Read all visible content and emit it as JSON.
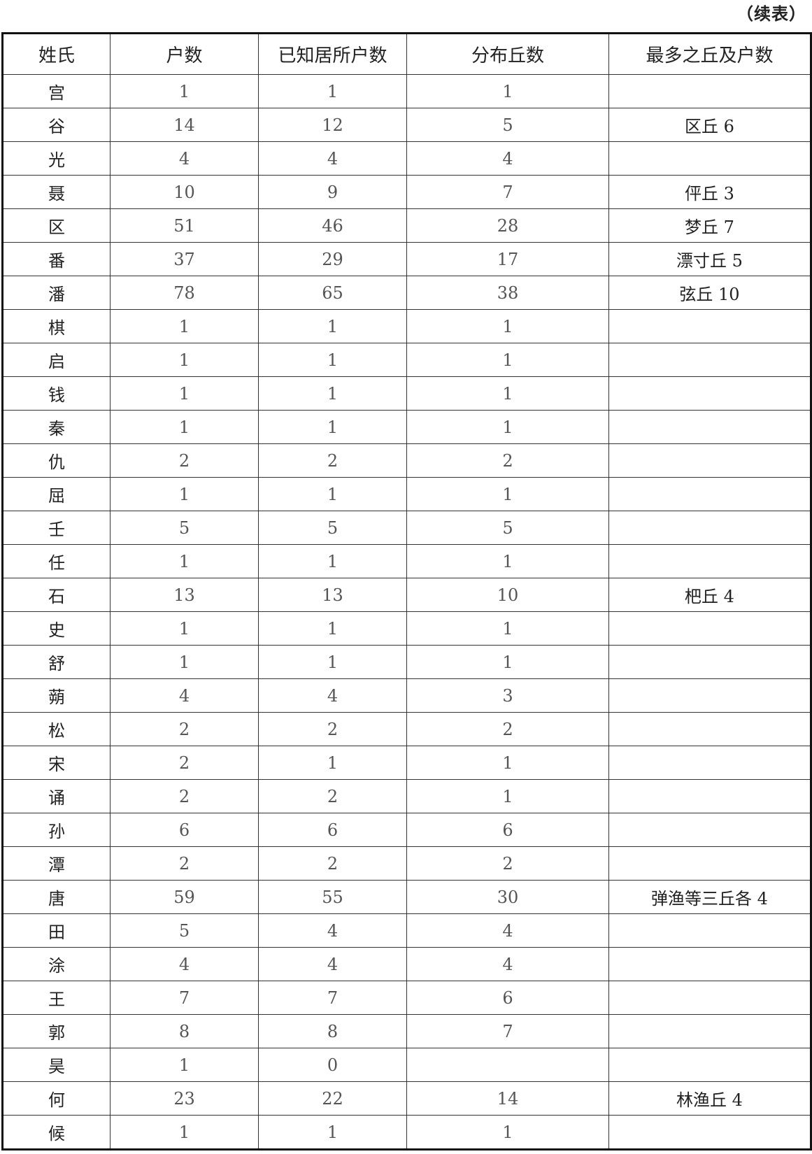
{
  "caption": "（续表）",
  "headers": [
    "姓氏",
    "户数",
    "已知居所户数",
    "分布丘数",
    "最多之丘及户数"
  ],
  "rows": [
    [
      "宫",
      "1",
      "1",
      "1",
      ""
    ],
    [
      "谷",
      "14",
      "12",
      "5",
      "区丘 6"
    ],
    [
      "光",
      "4",
      "4",
      "4",
      ""
    ],
    [
      "聂",
      "10",
      "9",
      "7",
      "伻丘 3"
    ],
    [
      "区",
      "51",
      "46",
      "28",
      "梦丘 7"
    ],
    [
      "番",
      "37",
      "29",
      "17",
      "漂寸丘 5"
    ],
    [
      "潘",
      "78",
      "65",
      "38",
      "弦丘 10"
    ],
    [
      "棋",
      "1",
      "1",
      "1",
      ""
    ],
    [
      "启",
      "1",
      "1",
      "1",
      ""
    ],
    [
      "钱",
      "1",
      "1",
      "1",
      ""
    ],
    [
      "秦",
      "1",
      "1",
      "1",
      ""
    ],
    [
      "仇",
      "2",
      "2",
      "2",
      ""
    ],
    [
      "屈",
      "1",
      "1",
      "1",
      ""
    ],
    [
      "壬",
      "5",
      "5",
      "5",
      ""
    ],
    [
      "任",
      "1",
      "1",
      "1",
      ""
    ],
    [
      "石",
      "13",
      "13",
      "10",
      "杷丘 4"
    ],
    [
      "史",
      "1",
      "1",
      "1",
      ""
    ],
    [
      "舒",
      "1",
      "1",
      "1",
      ""
    ],
    [
      "蒴",
      "4",
      "4",
      "3",
      ""
    ],
    [
      "松",
      "2",
      "2",
      "2",
      ""
    ],
    [
      "宋",
      "2",
      "1",
      "1",
      ""
    ],
    [
      "诵",
      "2",
      "2",
      "1",
      ""
    ],
    [
      "孙",
      "6",
      "6",
      "6",
      ""
    ],
    [
      "潭",
      "2",
      "2",
      "2",
      ""
    ],
    [
      "唐",
      "59",
      "55",
      "30",
      "弹渔等三丘各 4"
    ],
    [
      "田",
      "5",
      "4",
      "4",
      ""
    ],
    [
      "涂",
      "4",
      "4",
      "4",
      ""
    ],
    [
      "王",
      "7",
      "7",
      "6",
      ""
    ],
    [
      "郭",
      "8",
      "8",
      "7",
      ""
    ],
    [
      "昊",
      "1",
      "0",
      "",
      ""
    ],
    [
      "何",
      "23",
      "22",
      "14",
      "林渔丘 4"
    ],
    [
      "候",
      "1",
      "1",
      "1",
      ""
    ]
  ]
}
